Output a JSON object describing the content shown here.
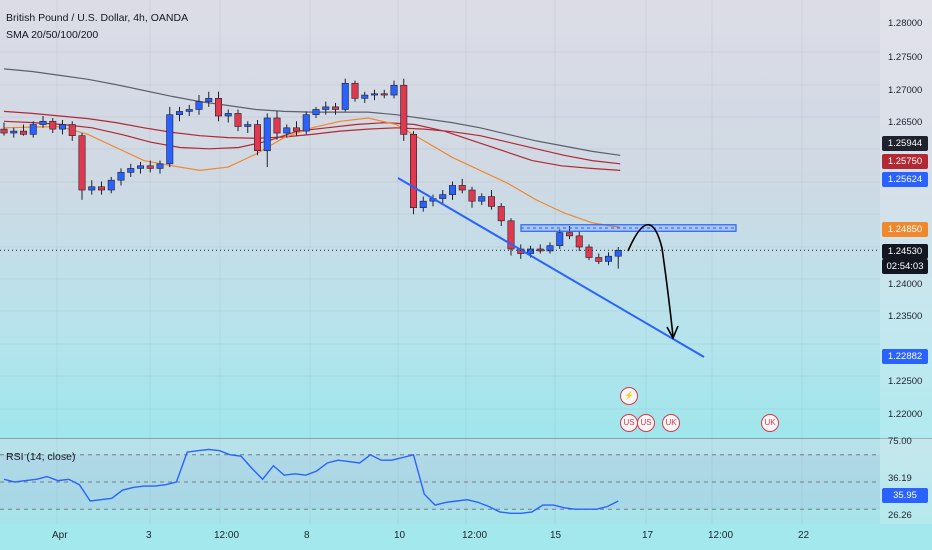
{
  "chart": {
    "symbol_line": "British Pound / U.S. Dollar, 4h, OANDA",
    "indicator_line": "SMA 20/50/100/200",
    "rsi_label": "RSI (14, close)"
  },
  "price_axis": {
    "ticks": [
      "1.28000",
      "1.27500",
      "1.27000",
      "1.26500",
      "1.24000",
      "1.23500",
      "1.22500",
      "1.22000"
    ],
    "badges": {
      "sma_gray": "1.25944",
      "sma_red": "1.25750",
      "sma_blue": "1.25624",
      "sma_orange": "1.24850",
      "last_price": "1.24530",
      "countdown": "02:54:03",
      "low_target": "1.22882"
    }
  },
  "rsi_axis": {
    "ticks": [
      "75.00",
      "36.19",
      "35.95",
      "26.26"
    ]
  },
  "time_axis": {
    "labels": [
      "Apr",
      "3",
      "12:00",
      "8",
      "10",
      "12:00",
      "15",
      "17",
      "12:00",
      "22"
    ]
  },
  "colors": {
    "up": "#2962ff",
    "down": "#e0394f",
    "sma_gray": "#5d606b",
    "sma_red": "#b22833",
    "sma_orange": "#f0882e",
    "sma_blue": "#2962ff",
    "trendline": "#2962ff",
    "rsi": "#2962ff"
  },
  "icons": {
    "event_flash": "lightning-icon",
    "flag_us": "us-flag-icon",
    "flag_uk": "uk-flag-icon"
  },
  "chart_data": {
    "type": "candlestick",
    "timeframe": "4h",
    "ylim": [
      1.2165,
      1.2835
    ],
    "candles": [
      [
        1.2638,
        1.2648,
        1.2628,
        1.2632
      ],
      [
        1.2632,
        1.264,
        1.2625,
        1.2635
      ],
      [
        1.2635,
        1.2645,
        1.2628,
        1.263
      ],
      [
        1.263,
        1.265,
        1.2625,
        1.2645
      ],
      [
        1.2645,
        1.2658,
        1.264,
        1.265
      ],
      [
        1.265,
        1.2655,
        1.2632,
        1.2638
      ],
      [
        1.2638,
        1.2652,
        1.263,
        1.2645
      ],
      [
        1.2645,
        1.265,
        1.262,
        1.2628
      ],
      [
        1.2628,
        1.2632,
        1.253,
        1.2545
      ],
      [
        1.2545,
        1.256,
        1.2538,
        1.255
      ],
      [
        1.255,
        1.2558,
        1.2538,
        1.2545
      ],
      [
        1.2545,
        1.2565,
        1.254,
        1.256
      ],
      [
        1.256,
        1.2578,
        1.2552,
        1.2572
      ],
      [
        1.2572,
        1.2585,
        1.2565,
        1.2578
      ],
      [
        1.2578,
        1.2588,
        1.257,
        1.2582
      ],
      [
        1.2582,
        1.259,
        1.2572,
        1.2578
      ],
      [
        1.2578,
        1.259,
        1.257,
        1.2585
      ],
      [
        1.2585,
        1.2672,
        1.258,
        1.266
      ],
      [
        1.266,
        1.2672,
        1.265,
        1.2665
      ],
      [
        1.2665,
        1.2675,
        1.2658,
        1.2668
      ],
      [
        1.2668,
        1.269,
        1.266,
        1.268
      ],
      [
        1.268,
        1.2695,
        1.2672,
        1.2685
      ],
      [
        1.2685,
        1.2695,
        1.265,
        1.2658
      ],
      [
        1.2658,
        1.2668,
        1.2648,
        1.2662
      ],
      [
        1.2662,
        1.2668,
        1.2635,
        1.2642
      ],
      [
        1.2642,
        1.265,
        1.2632,
        1.2645
      ],
      [
        1.2645,
        1.2652,
        1.2598,
        1.2605
      ],
      [
        1.2605,
        1.2662,
        1.258,
        1.2655
      ],
      [
        1.2655,
        1.2665,
        1.2622,
        1.2632
      ],
      [
        1.2632,
        1.2645,
        1.2625,
        1.264
      ],
      [
        1.264,
        1.265,
        1.2628,
        1.2635
      ],
      [
        1.2635,
        1.2665,
        1.263,
        1.266
      ],
      [
        1.266,
        1.2672,
        1.2655,
        1.2668
      ],
      [
        1.2668,
        1.268,
        1.266,
        1.2672
      ],
      [
        1.2672,
        1.2678,
        1.266,
        1.2668
      ],
      [
        1.2668,
        1.2715,
        1.2665,
        1.2708
      ],
      [
        1.2708,
        1.2712,
        1.268,
        1.2685
      ],
      [
        1.2685,
        1.2695,
        1.2678,
        1.269
      ],
      [
        1.269,
        1.2698,
        1.2682,
        1.2692
      ],
      [
        1.2692,
        1.2698,
        1.2685,
        1.269
      ],
      [
        1.269,
        1.2712,
        1.2685,
        1.2705
      ],
      [
        1.2705,
        1.2715,
        1.262,
        1.263
      ],
      [
        1.263,
        1.2635,
        1.2508,
        1.2518
      ],
      [
        1.2518,
        1.2535,
        1.2512,
        1.2528
      ],
      [
        1.2528,
        1.2538,
        1.252,
        1.2532
      ],
      [
        1.2532,
        1.2545,
        1.2525,
        1.2538
      ],
      [
        1.2538,
        1.2558,
        1.253,
        1.2552
      ],
      [
        1.2552,
        1.2562,
        1.254,
        1.2545
      ],
      [
        1.2545,
        1.255,
        1.2518,
        1.2528
      ],
      [
        1.2528,
        1.254,
        1.2522,
        1.2535
      ],
      [
        1.2535,
        1.2545,
        1.2515,
        1.252
      ],
      [
        1.252,
        1.2525,
        1.249,
        1.2498
      ],
      [
        1.2498,
        1.2502,
        1.2445,
        1.2455
      ],
      [
        1.2455,
        1.2462,
        1.244,
        1.2448
      ],
      [
        1.2448,
        1.246,
        1.2442,
        1.2455
      ],
      [
        1.2455,
        1.2462,
        1.2448,
        1.2452
      ],
      [
        1.2452,
        1.2465,
        1.2448,
        1.246
      ],
      [
        1.246,
        1.2485,
        1.2455,
        1.248
      ],
      [
        1.248,
        1.249,
        1.247,
        1.2475
      ],
      [
        1.2475,
        1.2482,
        1.2452,
        1.2458
      ],
      [
        1.2458,
        1.2462,
        1.2438,
        1.2442
      ],
      [
        1.2442,
        1.2448,
        1.2432,
        1.2436
      ],
      [
        1.2436,
        1.245,
        1.243,
        1.2444
      ],
      [
        1.2444,
        1.2458,
        1.2425,
        1.2453
      ]
    ],
    "sma_20": [
      1.264,
      1.2641,
      1.2642,
      1.263,
      1.261,
      1.259,
      1.2582,
      1.2575,
      1.258,
      1.26,
      1.2625,
      1.264,
      1.265,
      1.2655,
      1.2645,
      1.262,
      1.2595,
      1.2575,
      1.2555,
      1.253,
      1.251,
      1.2495,
      1.2488
    ],
    "sma_50": [
      1.265,
      1.2648,
      1.2645,
      1.264,
      1.263,
      1.2618,
      1.261,
      1.2608,
      1.261,
      1.262,
      1.2635,
      1.264,
      1.2645,
      1.2648,
      1.2645,
      1.2635,
      1.262,
      1.2605,
      1.259,
      1.2582,
      1.2578,
      1.2575
    ],
    "sma_100": [
      1.2665,
      1.2662,
      1.2658,
      1.2654,
      1.2648,
      1.264,
      1.2633,
      1.2628,
      1.2625,
      1.2624,
      1.2626,
      1.263,
      1.2635,
      1.2638,
      1.264,
      1.2638,
      1.2634,
      1.2628,
      1.2618,
      1.2608,
      1.2598,
      1.259,
      1.2585
    ],
    "sma_200": [
      1.273,
      1.2726,
      1.272,
      1.2714,
      1.2706,
      1.2697,
      1.2688,
      1.268,
      1.2674,
      1.2668,
      1.2665,
      1.2664,
      1.2664,
      1.2664,
      1.266,
      1.2654,
      1.2648,
      1.264,
      1.263,
      1.262,
      1.2612,
      1.2604,
      1.2598
    ],
    "rsi": [
      52,
      50,
      51,
      52,
      54,
      51,
      52,
      48,
      36,
      37,
      38,
      44,
      46,
      47,
      47,
      48,
      50,
      72,
      73,
      74,
      73,
      70,
      69,
      60,
      52,
      62,
      55,
      56,
      55,
      58,
      64,
      66,
      65,
      64,
      70,
      66,
      66,
      68,
      70,
      41,
      33,
      35,
      36,
      37,
      35,
      32,
      28,
      27,
      27,
      28,
      33,
      33,
      31,
      30,
      30,
      30,
      32,
      36
    ],
    "resistance_zone": [
      1.2492,
      1.2482
    ],
    "trendline": [
      [
        1.252,
        1.2255
      ]
    ],
    "projection_arrow": {
      "from": 1.247,
      "peak": 1.2488,
      "to": 1.233
    }
  }
}
